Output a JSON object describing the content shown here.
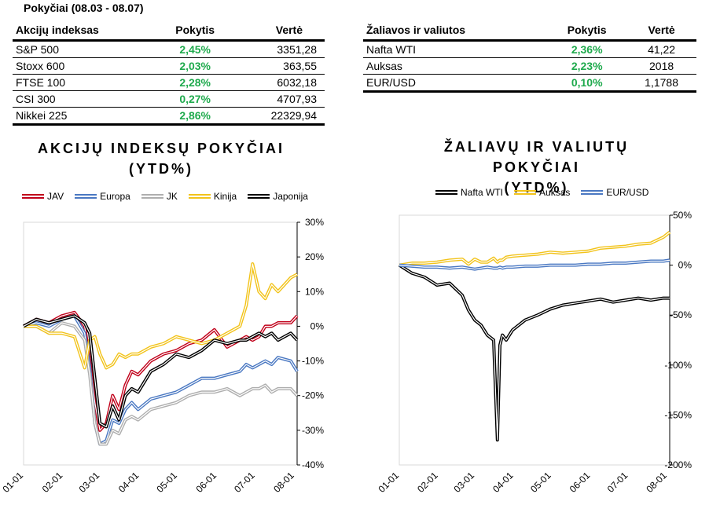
{
  "header": {
    "title": "Pokyčiai (08.03 - 08.07)"
  },
  "stocks_table": {
    "headers": [
      "Akcijų indeksas",
      "Pokytis",
      "Vertė"
    ],
    "rows": [
      [
        "S&P 500",
        "2,45%",
        "3351,28"
      ],
      [
        "Stoxx 600",
        "2,03%",
        "363,55"
      ],
      [
        "FTSE 100",
        "2,28%",
        "6032,18"
      ],
      [
        "CSI 300",
        "0,27%",
        "4707,93"
      ],
      [
        "Nikkei 225",
        "2,86%",
        "22329,94"
      ]
    ]
  },
  "commodities_table": {
    "headers": [
      "Žaliavos ir valiutos",
      "Pokytis",
      "Vertė"
    ],
    "rows": [
      [
        "Nafta WTI",
        "2,36%",
        "41,22"
      ],
      [
        "Auksas",
        "2,23%",
        "2018"
      ],
      [
        "EUR/USD",
        "0,10%",
        "1,1788"
      ]
    ]
  },
  "colors": {
    "change_green": "#1faa4d",
    "red": "#c0001a",
    "blue": "#4a78c2",
    "gray": "#aeaeae",
    "gold": "#f2c31a",
    "black": "#000000"
  },
  "chart_data": [
    {
      "type": "line",
      "title": "AKCIJŲ INDEKSŲ POKYČIAI",
      "subtitle": "(YTD%)",
      "x_ticks": [
        "01-01",
        "02-01",
        "03-01",
        "04-01",
        "05-01",
        "06-01",
        "07-01",
        "08-01"
      ],
      "y_ticks": [
        "30%",
        "20%",
        "10%",
        "0%",
        "-10%",
        "-20%",
        "-30%",
        "-40%"
      ],
      "ylim": [
        -40,
        30
      ],
      "legend_position": "top",
      "x_day": [
        0,
        10,
        20,
        30,
        40,
        48,
        52,
        56,
        60,
        65,
        70,
        75,
        80,
        85,
        90,
        100,
        110,
        120,
        130,
        140,
        150,
        160,
        170,
        175,
        180,
        185,
        190,
        195,
        200,
        210,
        215
      ],
      "series": [
        {
          "name": "JAV",
          "color": "#c0001a",
          "values": [
            0,
            2,
            1,
            3,
            4,
            0,
            -10,
            -22,
            -30,
            -28,
            -20,
            -24,
            -17,
            -13,
            -14,
            -10,
            -8,
            -7,
            -5,
            -4,
            -1,
            -6,
            -4,
            -3,
            -4,
            -3,
            0,
            0,
            1,
            1,
            3
          ]
        },
        {
          "name": "Europa",
          "color": "#4a78c2",
          "values": [
            0,
            1,
            0,
            2,
            3,
            -2,
            -12,
            -28,
            -34,
            -33,
            -27,
            -28,
            -24,
            -22,
            -24,
            -21,
            -20,
            -19,
            -17,
            -15,
            -15,
            -14,
            -13,
            -11,
            -12,
            -11,
            -10,
            -11,
            -9,
            -10,
            -13
          ]
        },
        {
          "name": "JK",
          "color": "#aeaeae",
          "values": [
            0,
            0,
            -2,
            1,
            0,
            -4,
            -14,
            -28,
            -34,
            -34,
            -30,
            -31,
            -27,
            -26,
            -27,
            -24,
            -23,
            -22,
            -20,
            -19,
            -19,
            -18,
            -20,
            -19,
            -18,
            -18,
            -17,
            -19,
            -18,
            -18,
            -20
          ]
        },
        {
          "name": "Kinija",
          "color": "#f2c31a",
          "values": [
            0,
            0,
            -2,
            -2,
            -3,
            -12,
            -4,
            -3,
            -8,
            -12,
            -11,
            -8,
            -9,
            -8,
            -8,
            -6,
            -5,
            -3,
            -4,
            -5,
            -4,
            -2,
            0,
            6,
            18,
            10,
            8,
            12,
            10,
            14,
            15
          ]
        },
        {
          "name": "Japonija",
          "color": "#000000",
          "values": [
            0,
            2,
            1,
            2,
            3,
            1,
            -2,
            -15,
            -28,
            -29,
            -23,
            -27,
            -20,
            -18,
            -19,
            -13,
            -11,
            -8,
            -9,
            -7,
            -4,
            -5,
            -4,
            -4,
            -3,
            -2,
            -3,
            -2,
            -4,
            -2,
            -4
          ]
        }
      ]
    },
    {
      "type": "line",
      "title": "ŽALIAVŲ IR VALIUTŲ POKYČIAI",
      "subtitle": "(YTD%)",
      "x_ticks": [
        "01-01",
        "02-01",
        "03-01",
        "04-01",
        "05-01",
        "06-01",
        "07-01",
        "08-01"
      ],
      "y_ticks": [
        "50%",
        "0%",
        "-50%",
        "-100%",
        "-150%",
        "-200%"
      ],
      "ylim": [
        -200,
        50
      ],
      "legend_position": "top",
      "x_day": [
        0,
        10,
        20,
        30,
        40,
        50,
        55,
        60,
        65,
        70,
        75,
        78,
        80,
        82,
        85,
        90,
        100,
        110,
        120,
        130,
        140,
        150,
        160,
        170,
        180,
        190,
        200,
        210,
        215
      ],
      "series": [
        {
          "name": "Nafta WTI",
          "color": "#000000",
          "values": [
            0,
            -8,
            -12,
            -20,
            -18,
            -30,
            -45,
            -55,
            -60,
            -70,
            -75,
            -175,
            -80,
            -70,
            -75,
            -65,
            -55,
            -50,
            -44,
            -40,
            -38,
            -36,
            -34,
            -37,
            -35,
            -33,
            -35,
            -33,
            -33
          ]
        },
        {
          "name": "Auksas",
          "color": "#f2c31a",
          "values": [
            0,
            2,
            2,
            3,
            5,
            6,
            1,
            6,
            3,
            3,
            7,
            3,
            5,
            5,
            8,
            9,
            10,
            11,
            13,
            12,
            13,
            14,
            17,
            18,
            19,
            21,
            22,
            28,
            33
          ]
        },
        {
          "name": "EUR/USD",
          "color": "#4a78c2",
          "values": [
            0,
            -1,
            -2,
            -2,
            -3,
            -2,
            -3,
            -4,
            -3,
            -2,
            -3,
            -3,
            -2,
            -3,
            -2,
            -2,
            -1,
            -1,
            0,
            0,
            0,
            1,
            1,
            2,
            2,
            3,
            4,
            4,
            5
          ]
        }
      ]
    }
  ]
}
